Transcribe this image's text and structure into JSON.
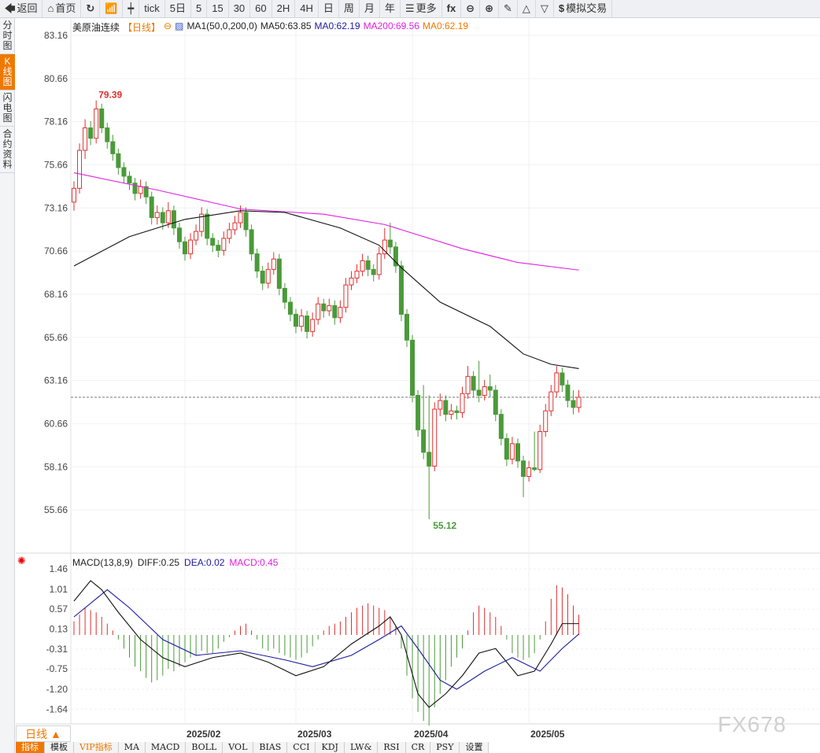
{
  "toolbar": [
    {
      "icon": "back-arrow-icon",
      "glyph": "🡄",
      "label": "返回"
    },
    {
      "icon": "home-icon",
      "glyph": "⌂",
      "label": "首页"
    },
    {
      "icon": "refresh-icon",
      "glyph": "↻",
      "label": ""
    },
    {
      "icon": "bar-chart-icon",
      "glyph": "📶",
      "label": ""
    },
    {
      "icon": "candlestick-icon",
      "glyph": "┿",
      "label": ""
    },
    {
      "icon": "",
      "glyph": "",
      "label": "tick"
    },
    {
      "icon": "",
      "glyph": "",
      "label": "5日"
    },
    {
      "icon": "",
      "glyph": "",
      "label": "5"
    },
    {
      "icon": "",
      "glyph": "",
      "label": "15"
    },
    {
      "icon": "",
      "glyph": "",
      "label": "30"
    },
    {
      "icon": "",
      "glyph": "",
      "label": "60"
    },
    {
      "icon": "",
      "glyph": "",
      "label": "2H"
    },
    {
      "icon": "",
      "glyph": "",
      "label": "4H"
    },
    {
      "icon": "",
      "glyph": "",
      "label": "日"
    },
    {
      "icon": "",
      "glyph": "",
      "label": "周"
    },
    {
      "icon": "",
      "glyph": "",
      "label": "月"
    },
    {
      "icon": "",
      "glyph": "",
      "label": "年"
    },
    {
      "icon": "menu-icon",
      "glyph": "☰",
      "label": "更多"
    },
    {
      "icon": "formula-icon",
      "glyph": "fx",
      "label": ""
    },
    {
      "icon": "zoom-out-icon",
      "glyph": "⊖",
      "label": ""
    },
    {
      "icon": "zoom-in-icon",
      "glyph": "⊕",
      "label": ""
    },
    {
      "icon": "pen-icon",
      "glyph": "✎",
      "label": ""
    },
    {
      "icon": "triangle-up-icon",
      "glyph": "△",
      "label": ""
    },
    {
      "icon": "triangle-down-icon",
      "glyph": "▽",
      "label": ""
    },
    {
      "icon": "dollar-icon",
      "glyph": "$",
      "label": "模拟交易"
    }
  ],
  "left_tabs": [
    {
      "label": "分时图"
    },
    {
      "label": "K线图",
      "active": true
    },
    {
      "label": "闪电图"
    },
    {
      "label": "合约资料"
    }
  ],
  "legend": {
    "name": "美原油连续",
    "period": "【日线】",
    "ma_setting": "MA1(50,0,200,0)",
    "ma50": "MA50:63.85",
    "ma0a": "MA0:62.19",
    "ma200": "MA200:69.56",
    "ma0b": "MA0:62.19"
  },
  "macd_legend": {
    "setting": "MACD(13,8,9)",
    "diff": "DIFF:0.25",
    "dea": "DEA:0.02",
    "macd": "MACD:0.45"
  },
  "period_button": "日线 ▲",
  "bottom_tabs": [
    {
      "label": "指标",
      "active": true
    },
    {
      "label": "模板"
    },
    {
      "label": "VIP指标",
      "vip": true
    },
    {
      "label": "MA"
    },
    {
      "label": "MACD"
    },
    {
      "label": "BOLL"
    },
    {
      "label": "VOL"
    },
    {
      "label": "BIAS"
    },
    {
      "label": "CCI"
    },
    {
      "label": "KDJ"
    },
    {
      "label": "LW&"
    },
    {
      "label": "RSI"
    },
    {
      "label": "CR"
    },
    {
      "label": "PSY"
    },
    {
      "label": "设置"
    }
  ],
  "watermark": "FX678",
  "colors": {
    "up": "#e03030",
    "down": "#4a9a3a",
    "ma50": "#111111",
    "ma200": "#e020e0",
    "dea": "#1a1aa0",
    "macd": "#e020e0",
    "accent": "#f07800"
  },
  "chart_data": {
    "type": "candlestick",
    "price_axis": {
      "ticks": [
        83.16,
        80.66,
        78.16,
        75.66,
        73.16,
        70.66,
        68.16,
        65.66,
        63.16,
        60.66,
        58.16,
        55.66
      ],
      "range": [
        55.66,
        83.16
      ]
    },
    "x_ticks": [
      {
        "label": "2025/02",
        "index": 20
      },
      {
        "label": "2025/03",
        "index": 40
      },
      {
        "label": "2025/04",
        "index": 61
      },
      {
        "label": "2025/05",
        "index": 82
      }
    ],
    "high_label": "79.39",
    "low_label": "55.12",
    "last_price": 62.19,
    "candles": [
      [
        73.5,
        74.7,
        73.0,
        74.3
      ],
      [
        74.3,
        76.9,
        74.0,
        76.5
      ],
      [
        76.5,
        78.3,
        76.0,
        77.8
      ],
      [
        77.8,
        78.2,
        76.8,
        77.2
      ],
      [
        77.2,
        79.39,
        76.9,
        78.9
      ],
      [
        78.9,
        79.2,
        77.5,
        77.8
      ],
      [
        77.8,
        78.1,
        76.6,
        77.0
      ],
      [
        77.0,
        77.4,
        75.9,
        76.3
      ],
      [
        76.3,
        76.6,
        75.1,
        75.5
      ],
      [
        75.5,
        75.8,
        74.6,
        75.0
      ],
      [
        75.0,
        75.3,
        74.2,
        74.6
      ],
      [
        74.6,
        74.9,
        73.6,
        74.0
      ],
      [
        74.0,
        74.8,
        73.7,
        74.4
      ],
      [
        74.4,
        74.7,
        73.4,
        73.8
      ],
      [
        73.8,
        74.1,
        72.2,
        72.6
      ],
      [
        72.6,
        73.3,
        72.2,
        72.9
      ],
      [
        72.9,
        73.2,
        71.9,
        72.3
      ],
      [
        72.3,
        73.5,
        72.0,
        73.0
      ],
      [
        73.0,
        73.3,
        71.6,
        72.0
      ],
      [
        72.0,
        72.3,
        70.8,
        71.2
      ],
      [
        71.2,
        71.5,
        70.1,
        70.5
      ],
      [
        70.5,
        71.7,
        70.2,
        71.3
      ],
      [
        71.3,
        72.2,
        71.0,
        71.8
      ],
      [
        71.8,
        73.2,
        71.5,
        72.8
      ],
      [
        72.8,
        73.1,
        71.0,
        71.4
      ],
      [
        71.4,
        71.7,
        70.6,
        71.0
      ],
      [
        71.0,
        71.3,
        70.3,
        70.7
      ],
      [
        70.7,
        71.8,
        70.4,
        71.4
      ],
      [
        71.4,
        72.3,
        71.1,
        71.9
      ],
      [
        71.9,
        72.7,
        71.6,
        72.3
      ],
      [
        72.3,
        73.3,
        72.0,
        72.9
      ],
      [
        72.9,
        73.2,
        71.5,
        71.9
      ],
      [
        71.9,
        72.2,
        70.1,
        70.5
      ],
      [
        70.5,
        70.8,
        69.1,
        69.5
      ],
      [
        69.5,
        69.8,
        68.4,
        68.8
      ],
      [
        68.8,
        70.0,
        68.5,
        69.6
      ],
      [
        69.6,
        70.6,
        69.3,
        70.2
      ],
      [
        70.2,
        70.5,
        68.1,
        68.5
      ],
      [
        68.5,
        68.8,
        67.3,
        67.7
      ],
      [
        67.7,
        68.0,
        66.6,
        67.0
      ],
      [
        67.0,
        67.3,
        65.9,
        66.3
      ],
      [
        66.3,
        67.3,
        66.0,
        66.9
      ],
      [
        66.9,
        67.2,
        65.6,
        66.0
      ],
      [
        66.0,
        67.1,
        65.7,
        66.7
      ],
      [
        66.7,
        68.0,
        66.4,
        67.6
      ],
      [
        67.6,
        67.9,
        66.8,
        67.2
      ],
      [
        67.2,
        67.9,
        66.9,
        67.5
      ],
      [
        67.5,
        67.8,
        66.4,
        66.8
      ],
      [
        66.8,
        67.8,
        66.5,
        67.4
      ],
      [
        67.4,
        69.1,
        67.1,
        68.7
      ],
      [
        68.7,
        69.5,
        68.4,
        69.1
      ],
      [
        69.1,
        69.9,
        68.8,
        69.5
      ],
      [
        69.5,
        70.5,
        69.2,
        70.1
      ],
      [
        70.1,
        70.4,
        69.2,
        69.6
      ],
      [
        69.6,
        69.9,
        68.9,
        69.3
      ],
      [
        69.3,
        70.9,
        69.0,
        70.5
      ],
      [
        70.5,
        72.0,
        70.2,
        71.3
      ],
      [
        71.3,
        72.3,
        70.5,
        70.9
      ],
      [
        70.9,
        71.2,
        69.4,
        69.8
      ],
      [
        69.8,
        70.1,
        66.6,
        67.0
      ],
      [
        67.0,
        67.3,
        65.1,
        65.5
      ],
      [
        65.5,
        65.8,
        61.9,
        62.3
      ],
      [
        62.3,
        62.6,
        59.9,
        60.3
      ],
      [
        60.3,
        62.9,
        58.6,
        59.0
      ],
      [
        59.0,
        62.3,
        55.12,
        58.2
      ],
      [
        58.2,
        61.9,
        57.9,
        61.5
      ],
      [
        61.5,
        62.4,
        61.1,
        62.0
      ],
      [
        62.0,
        62.3,
        60.8,
        61.2
      ],
      [
        61.2,
        61.8,
        60.9,
        61.4
      ],
      [
        61.4,
        61.7,
        60.9,
        61.3
      ],
      [
        61.3,
        62.8,
        61.0,
        62.4
      ],
      [
        62.4,
        64.0,
        62.1,
        63.4
      ],
      [
        63.4,
        63.7,
        62.2,
        62.6
      ],
      [
        62.6,
        64.3,
        61.9,
        62.3
      ],
      [
        62.3,
        63.2,
        62.0,
        62.8
      ],
      [
        62.8,
        63.5,
        62.2,
        62.6
      ],
      [
        62.6,
        62.9,
        60.8,
        61.2
      ],
      [
        61.2,
        61.5,
        59.4,
        59.8
      ],
      [
        59.8,
        60.1,
        58.2,
        58.6
      ],
      [
        58.6,
        59.9,
        58.3,
        59.5
      ],
      [
        59.5,
        59.8,
        58.1,
        58.5
      ],
      [
        58.5,
        58.8,
        56.4,
        57.6
      ],
      [
        57.6,
        58.5,
        57.3,
        58.1
      ],
      [
        58.1,
        60.2,
        57.9,
        58.0
      ],
      [
        58.0,
        60.6,
        57.8,
        60.2
      ],
      [
        60.2,
        61.8,
        59.9,
        61.4
      ],
      [
        61.4,
        62.9,
        61.1,
        62.5
      ],
      [
        62.5,
        64.0,
        62.2,
        63.6
      ],
      [
        63.6,
        63.9,
        62.5,
        62.9
      ],
      [
        62.9,
        63.2,
        61.6,
        62.0
      ],
      [
        62.0,
        62.6,
        61.2,
        61.6
      ],
      [
        61.6,
        62.6,
        61.3,
        62.19
      ]
    ],
    "ma50": [
      [
        0,
        69.8
      ],
      [
        10,
        71.5
      ],
      [
        20,
        72.5
      ],
      [
        30,
        73.0
      ],
      [
        38,
        72.9
      ],
      [
        48,
        72.0
      ],
      [
        55,
        71.0
      ],
      [
        59,
        69.7
      ],
      [
        66,
        67.7
      ],
      [
        75,
        66.3
      ],
      [
        81,
        64.7
      ],
      [
        86,
        64.1
      ],
      [
        91,
        63.85
      ]
    ],
    "ma200": [
      [
        0,
        75.2
      ],
      [
        15,
        74.2
      ],
      [
        30,
        73.1
      ],
      [
        45,
        72.8
      ],
      [
        56,
        72.2
      ],
      [
        60,
        71.8
      ],
      [
        70,
        70.8
      ],
      [
        80,
        70.0
      ],
      [
        91,
        69.56
      ]
    ],
    "macd_axis": {
      "ticks": [
        1.46,
        1.01,
        0.57,
        0.13,
        -0.31,
        -0.75,
        -1.2,
        -1.64
      ]
    },
    "macd_hist": [
      0.3,
      0.45,
      0.6,
      0.55,
      0.5,
      0.4,
      0.25,
      0.1,
      -0.1,
      -0.3,
      -0.5,
      -0.7,
      -0.8,
      -0.95,
      -1.05,
      -1.0,
      -0.9,
      -0.75,
      -0.8,
      -0.7,
      -0.6,
      -0.5,
      -0.45,
      -0.35,
      -0.4,
      -0.4,
      -0.3,
      -0.15,
      -0.05,
      0.1,
      0.2,
      0.25,
      0.1,
      -0.1,
      -0.3,
      -0.35,
      -0.3,
      -0.4,
      -0.45,
      -0.5,
      -0.55,
      -0.5,
      -0.4,
      -0.25,
      -0.1,
      0.1,
      0.2,
      0.25,
      0.3,
      0.4,
      0.5,
      0.6,
      0.65,
      0.7,
      0.65,
      0.6,
      0.55,
      0.4,
      0.2,
      -0.3,
      -0.9,
      -1.4,
      -1.7,
      -1.9,
      -2.0,
      -1.6,
      -1.3,
      -1.0,
      -0.7,
      -0.5,
      -0.3,
      0.1,
      0.5,
      0.65,
      0.6,
      0.5,
      0.4,
      0.2,
      -0.1,
      -0.4,
      -0.5,
      -0.55,
      -0.5,
      -0.4,
      -0.1,
      0.3,
      0.8,
      1.1,
      1.05,
      0.9,
      0.65,
      0.45
    ],
    "diff": [
      [
        0,
        0.75
      ],
      [
        3,
        1.2
      ],
      [
        5,
        1.0
      ],
      [
        8,
        0.5
      ],
      [
        12,
        -0.1
      ],
      [
        16,
        -0.5
      ],
      [
        20,
        -0.7
      ],
      [
        25,
        -0.5
      ],
      [
        30,
        -0.4
      ],
      [
        35,
        -0.6
      ],
      [
        40,
        -0.9
      ],
      [
        45,
        -0.7
      ],
      [
        50,
        -0.2
      ],
      [
        55,
        0.2
      ],
      [
        57,
        0.4
      ],
      [
        59,
        0.0
      ],
      [
        62,
        -1.3
      ],
      [
        64,
        -1.6
      ],
      [
        67,
        -1.3
      ],
      [
        70,
        -0.9
      ],
      [
        73,
        -0.4
      ],
      [
        76,
        -0.3
      ],
      [
        80,
        -0.9
      ],
      [
        83,
        -0.8
      ],
      [
        86,
        -0.2
      ],
      [
        88,
        0.25
      ],
      [
        91,
        0.25
      ]
    ],
    "dea": [
      [
        0,
        0.4
      ],
      [
        6,
        1.0
      ],
      [
        10,
        0.6
      ],
      [
        16,
        -0.1
      ],
      [
        22,
        -0.45
      ],
      [
        30,
        -0.35
      ],
      [
        38,
        -0.55
      ],
      [
        43,
        -0.7
      ],
      [
        50,
        -0.45
      ],
      [
        55,
        -0.1
      ],
      [
        59,
        0.2
      ],
      [
        62,
        -0.3
      ],
      [
        66,
        -1.0
      ],
      [
        69,
        -1.2
      ],
      [
        74,
        -0.8
      ],
      [
        79,
        -0.5
      ],
      [
        84,
        -0.8
      ],
      [
        88,
        -0.3
      ],
      [
        91,
        0.02
      ]
    ]
  }
}
